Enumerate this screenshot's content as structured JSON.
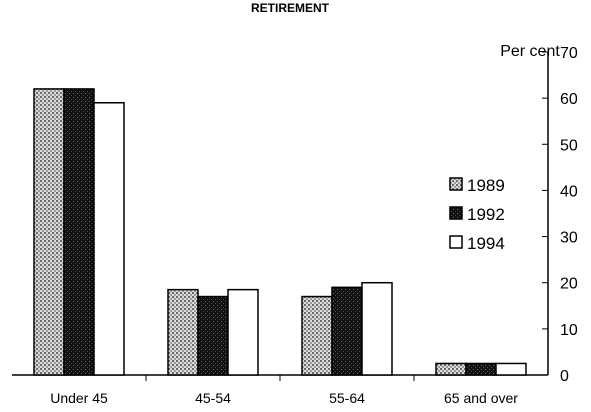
{
  "chart_data": {
    "type": "bar",
    "title": "RETIREMENT",
    "ylabel": "Per cent",
    "xlabel": "",
    "categories": [
      "Under 45",
      "45-54",
      "55-64",
      "65 and over"
    ],
    "series": [
      {
        "name": "1989",
        "values": [
          62,
          18.5,
          17,
          2.5
        ],
        "pattern": "light-dots",
        "color": "#9a9a9a"
      },
      {
        "name": "1992",
        "values": [
          62,
          17,
          19,
          2.5
        ],
        "pattern": "dark-dots",
        "color": "#1a1a1a"
      },
      {
        "name": "1994",
        "values": [
          59,
          18.5,
          20,
          2.5
        ],
        "pattern": "none",
        "color": "#ffffff"
      }
    ],
    "ylim": [
      0,
      70
    ],
    "yticks": [
      0,
      10,
      20,
      30,
      40,
      50,
      60,
      70
    ],
    "y_axis_side": "right",
    "grid": false,
    "legend_position": "right"
  }
}
